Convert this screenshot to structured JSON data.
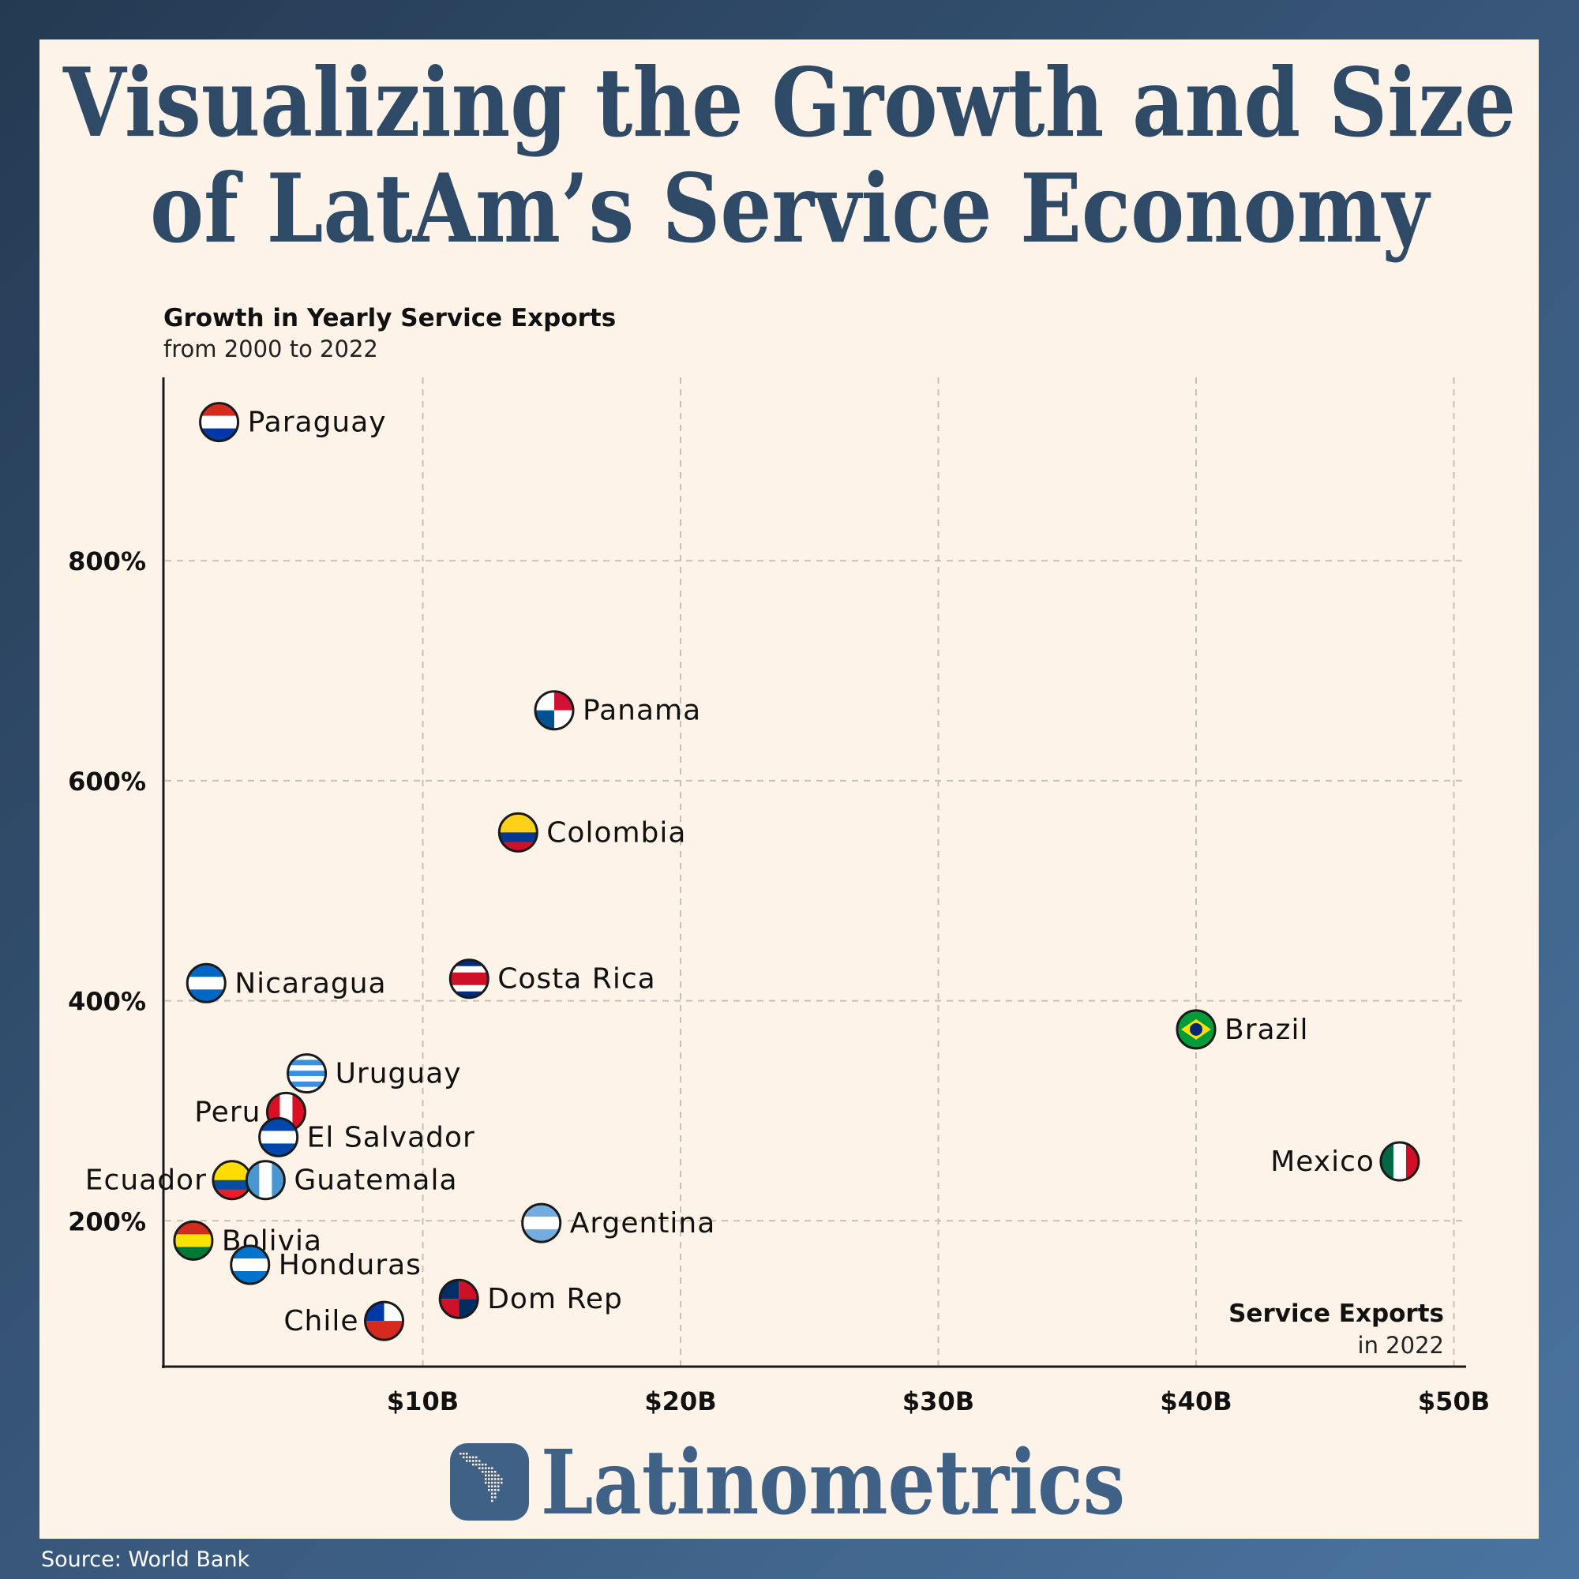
{
  "title_line1": "Visualizing the Growth and Size",
  "title_line2": "of LatAm’s Service Economy",
  "brand": "Latinometrics",
  "source": "Source: World Bank",
  "colors": {
    "title": "#2e4a66",
    "card": "#fef3e8",
    "brand": "#3f6186",
    "grid": "#c9bfb5",
    "axis": "#1a1a1a"
  },
  "chart_data": {
    "type": "scatter",
    "ylabel": "Growth in Yearly Service Exports",
    "ylabel_sub": "from 2000 to 2022",
    "xlabel": "Service Exports",
    "xlabel_sub": "in 2022",
    "xlim": [
      0,
      50
    ],
    "ylim": [
      0,
      960
    ],
    "x_ticks": [
      {
        "v": 10,
        "label": "$10B"
      },
      {
        "v": 20,
        "label": "$20B"
      },
      {
        "v": 30,
        "label": "$30B"
      },
      {
        "v": 40,
        "label": "$40B"
      },
      {
        "v": 50,
        "label": "$50B"
      }
    ],
    "y_ticks": [
      {
        "v": 200,
        "label": "200%"
      },
      {
        "v": 400,
        "label": "400%"
      },
      {
        "v": 600,
        "label": "600%"
      },
      {
        "v": 800,
        "label": "800%"
      }
    ],
    "grid": true,
    "points": [
      {
        "name": "Paraguay",
        "x": 2.1,
        "y": 926,
        "label_side": "right",
        "flag": {
          "dir": "h",
          "stripes": [
            "#d52b1e",
            "#ffffff",
            "#0038a8"
          ]
        }
      },
      {
        "name": "Panama",
        "x": 15.1,
        "y": 664,
        "label_side": "right",
        "flag": {
          "dir": "q",
          "stripes": [
            "#ffffff",
            "#d21034",
            "#005293",
            "#ffffff"
          ]
        }
      },
      {
        "name": "Colombia",
        "x": 13.7,
        "y": 553,
        "label_side": "right",
        "flag": {
          "dir": "h",
          "stripes": [
            "#fcd116",
            "#fcd116",
            "#003893",
            "#ce1126"
          ]
        }
      },
      {
        "name": "Nicaragua",
        "x": 1.6,
        "y": 416,
        "label_side": "right",
        "flag": {
          "dir": "h",
          "stripes": [
            "#0067c6",
            "#ffffff",
            "#0067c6"
          ]
        }
      },
      {
        "name": "Costa Rica",
        "x": 11.8,
        "y": 420,
        "label_side": "right",
        "flag": {
          "dir": "h",
          "stripes": [
            "#002b7f",
            "#ffffff",
            "#ce1126",
            "#ce1126",
            "#ffffff",
            "#002b7f"
          ]
        }
      },
      {
        "name": "Brazil",
        "x": 40.0,
        "y": 374,
        "label_side": "right",
        "flag": {
          "dir": "h",
          "stripes": [
            "#009c3b"
          ]
        }
      },
      {
        "name": "Uruguay",
        "x": 5.5,
        "y": 334,
        "label_side": "right",
        "flag": {
          "dir": "h",
          "stripes": [
            "#ffffff",
            "#3b8fde",
            "#ffffff",
            "#3b8fde",
            "#ffffff",
            "#3b8fde",
            "#ffffff"
          ]
        }
      },
      {
        "name": "Peru",
        "x": 4.7,
        "y": 299,
        "label_side": "left",
        "flag": {
          "dir": "v",
          "stripes": [
            "#d91023",
            "#ffffff",
            "#d91023"
          ]
        }
      },
      {
        "name": "El Salvador",
        "x": 4.4,
        "y": 276,
        "label_side": "right",
        "flag": {
          "dir": "h",
          "stripes": [
            "#0047ab",
            "#ffffff",
            "#0047ab"
          ]
        }
      },
      {
        "name": "Ecuador",
        "x": 2.6,
        "y": 237,
        "label_side": "left",
        "label_dy": -1,
        "flag": {
          "dir": "h",
          "stripes": [
            "#ffdd00",
            "#ffdd00",
            "#034ea2",
            "#ed1c24"
          ]
        }
      },
      {
        "name": "Guatemala",
        "x": 3.9,
        "y": 237,
        "label_side": "right",
        "flag": {
          "dir": "v",
          "stripes": [
            "#4997d0",
            "#ffffff",
            "#4997d0"
          ]
        }
      },
      {
        "name": "Mexico",
        "x": 47.9,
        "y": 254,
        "label_side": "left",
        "flag": {
          "dir": "v",
          "stripes": [
            "#006847",
            "#ffffff",
            "#ce1126"
          ]
        }
      },
      {
        "name": "Argentina",
        "x": 14.6,
        "y": 198,
        "label_side": "right",
        "flag": {
          "dir": "h",
          "stripes": [
            "#74acdf",
            "#ffffff",
            "#74acdf"
          ]
        }
      },
      {
        "name": "Bolivia",
        "x": 1.1,
        "y": 182,
        "label_side": "right",
        "flag": {
          "dir": "h",
          "stripes": [
            "#d52b1e",
            "#f9e300",
            "#007934"
          ]
        }
      },
      {
        "name": "Honduras",
        "x": 3.3,
        "y": 160,
        "label_side": "right",
        "flag": {
          "dir": "h",
          "stripes": [
            "#0073cf",
            "#ffffff",
            "#0073cf"
          ]
        }
      },
      {
        "name": "Dom Rep",
        "x": 11.4,
        "y": 129,
        "label_side": "right",
        "flag": {
          "dir": "q",
          "stripes": [
            "#002d62",
            "#ce1126",
            "#ce1126",
            "#002d62"
          ]
        }
      },
      {
        "name": "Chile",
        "x": 8.5,
        "y": 109,
        "label_side": "left",
        "flag": {
          "dir": "h",
          "stripes": [
            "#ffffff",
            "#d52b1e"
          ]
        }
      }
    ]
  }
}
